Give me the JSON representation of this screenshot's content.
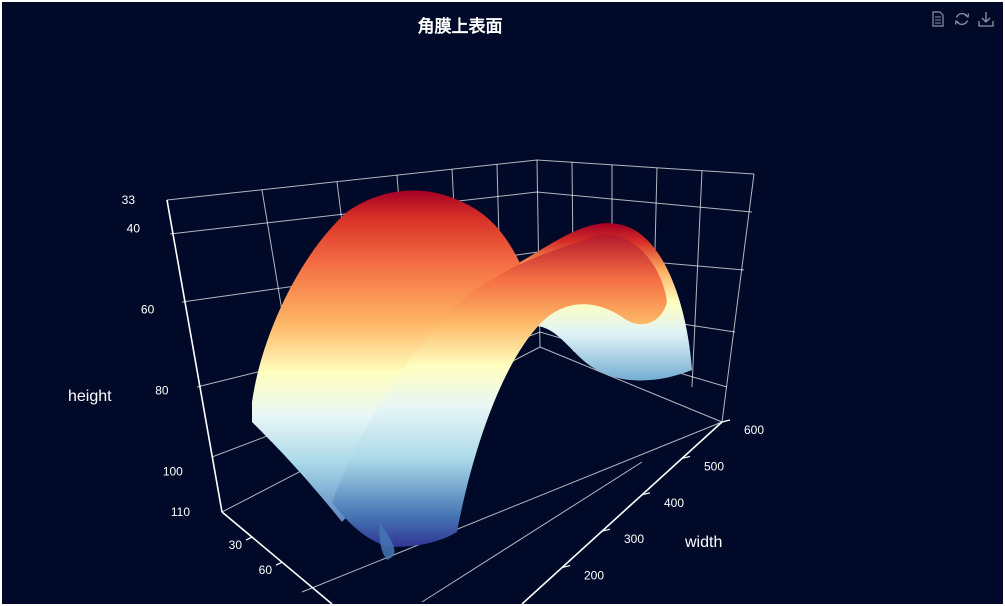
{
  "chart_data": {
    "type": "surface",
    "title": "角膜上表面",
    "xlabel": "width",
    "ylabel": "",
    "zlabel": "height",
    "x_ticks": [
      "200",
      "300",
      "400",
      "500",
      "600"
    ],
    "y_ticks": [
      "30",
      "60"
    ],
    "z_ticks": [
      "33",
      "40",
      "60",
      "80",
      "100",
      "110"
    ],
    "xlim": [
      100,
      600
    ],
    "ylim": [
      0,
      110
    ],
    "zlim": [
      33,
      110
    ],
    "z_inverted": true,
    "surface_description_colormap": [
      "#313695",
      "#4575b4",
      "#74add1",
      "#abd9e9",
      "#e0f3f8",
      "#ffffbf",
      "#fee090",
      "#fdae61",
      "#f46d43",
      "#d73027",
      "#a50026"
    ],
    "grid": true
  },
  "toolbox": {
    "icons": [
      "data-view-icon",
      "restore-icon",
      "save-image-icon"
    ]
  },
  "colors": {
    "background": "#000a28",
    "axis": "#ffffff"
  }
}
